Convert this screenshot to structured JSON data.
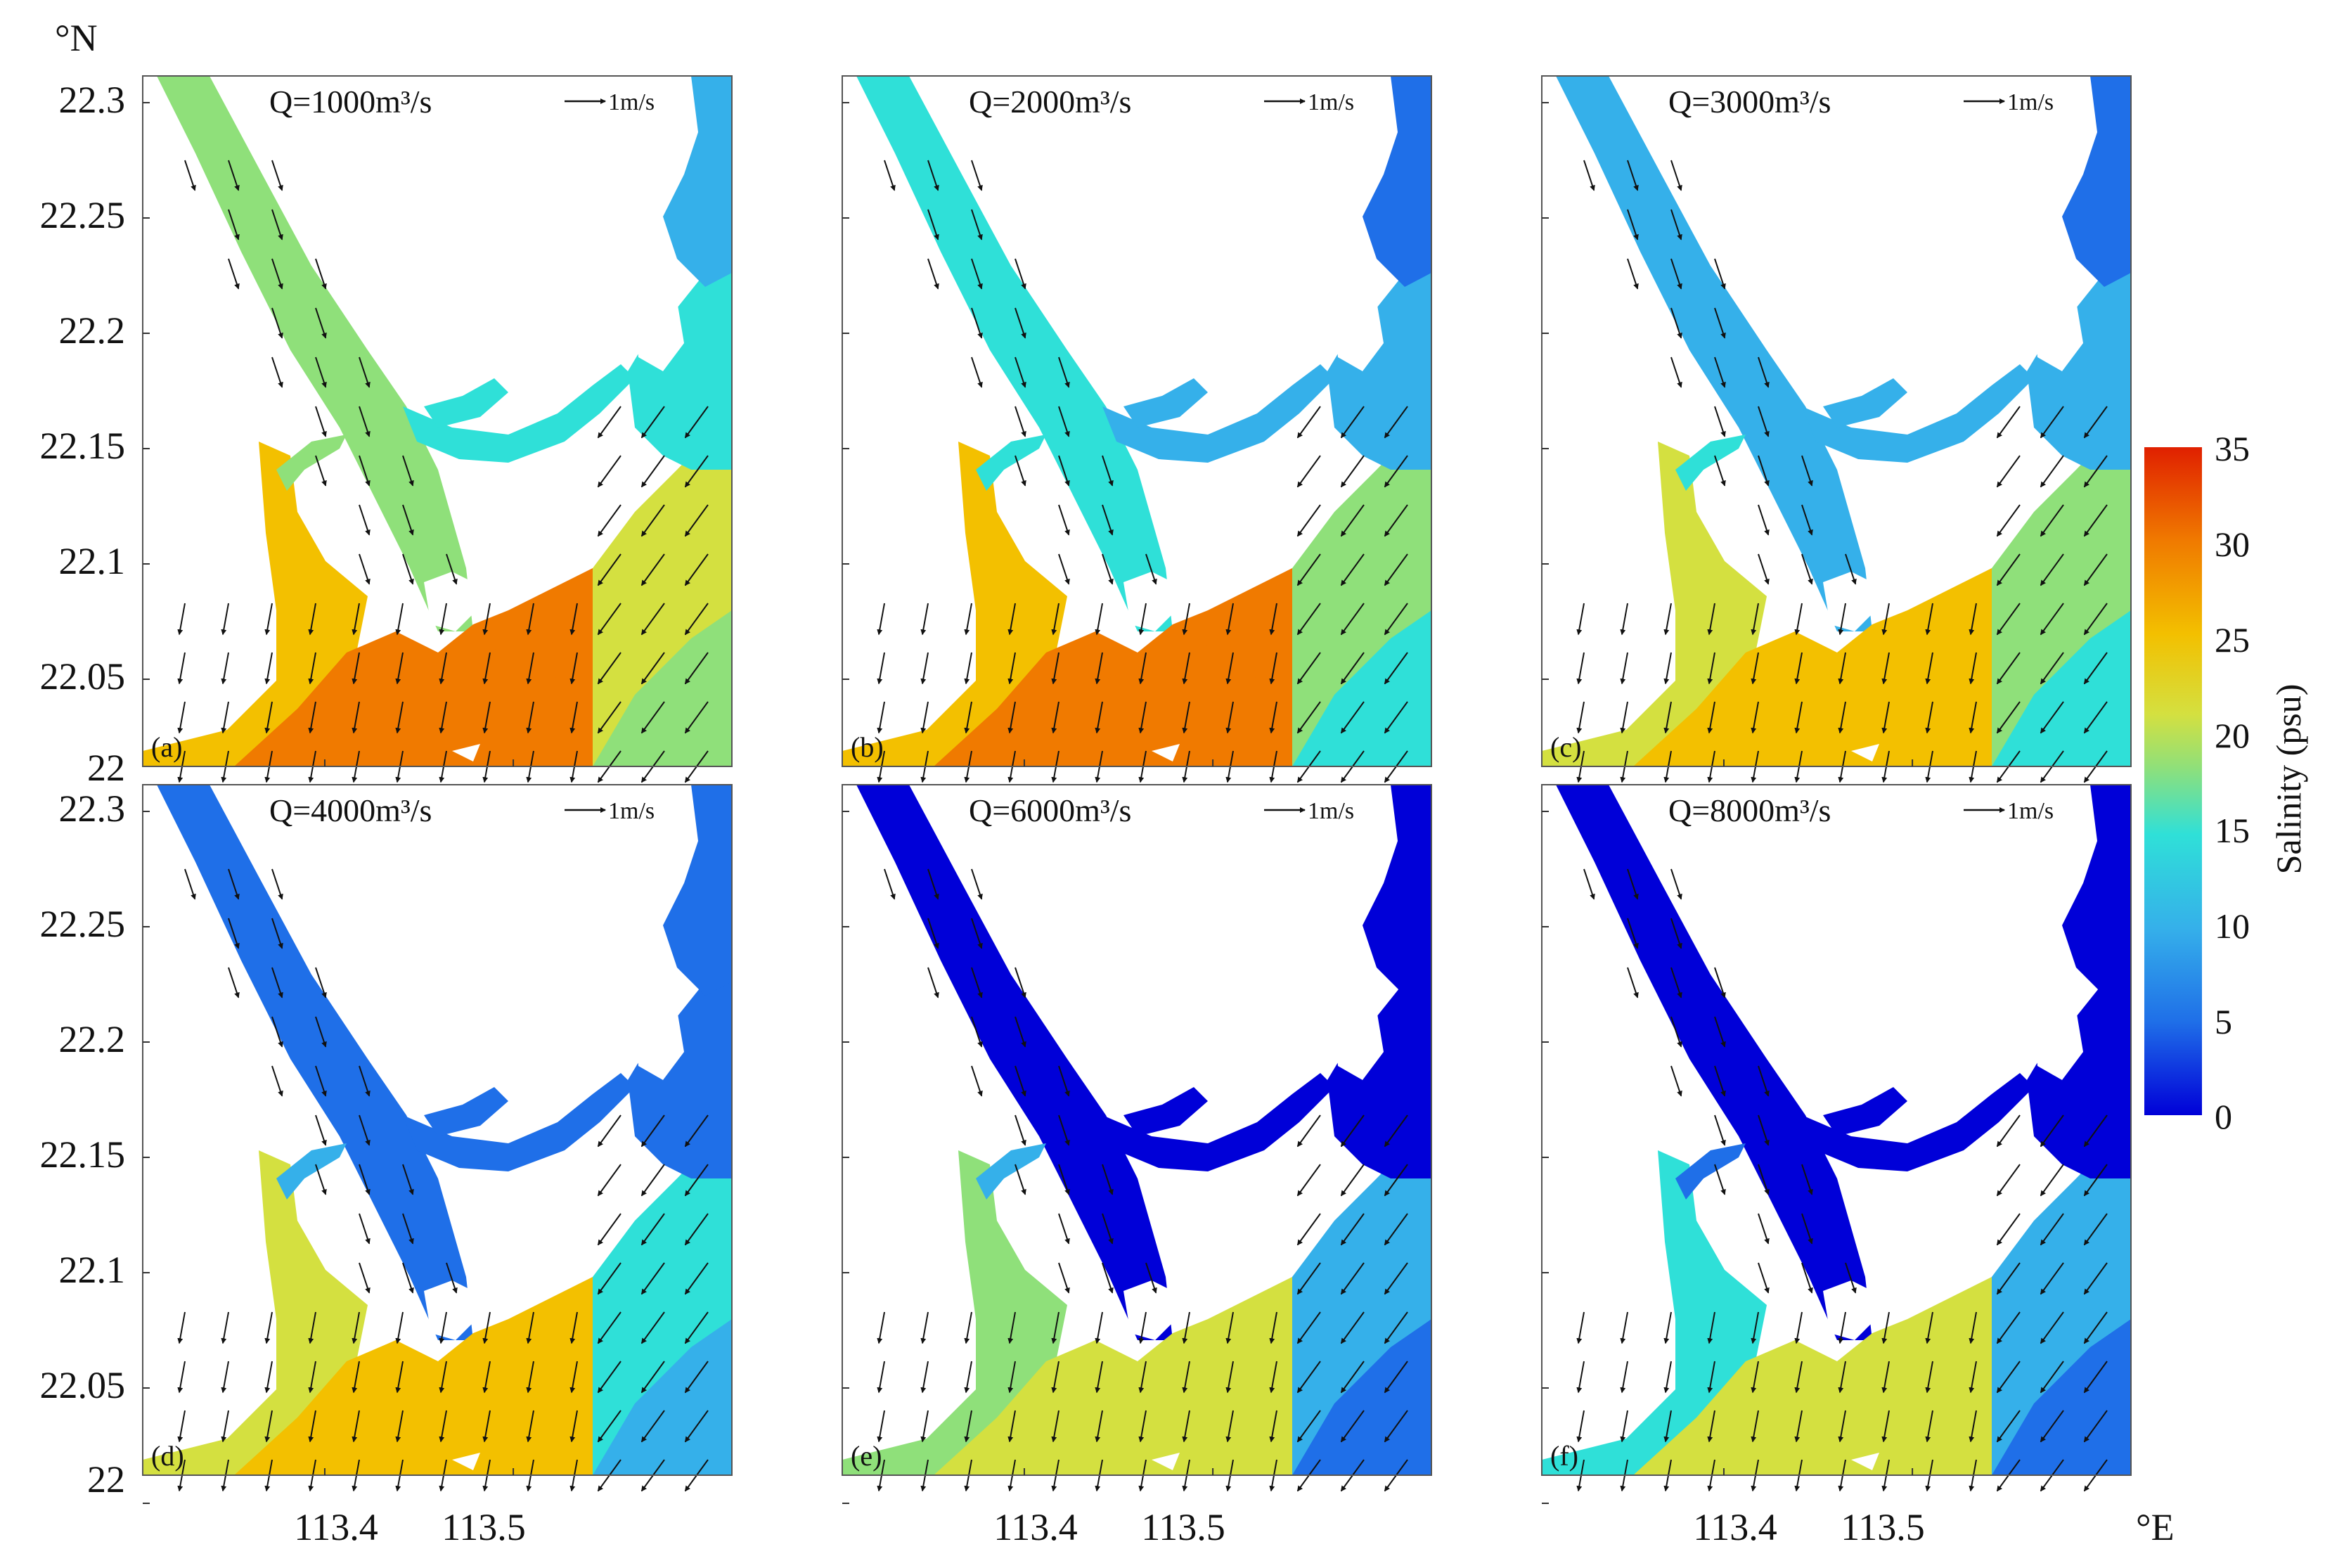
{
  "figure": {
    "y_axis_unit": "°N",
    "x_axis_unit": "°E",
    "y_ticks": [
      "22.3",
      "22.25",
      "22.2",
      "22.15",
      "22.1",
      "22.05",
      "22"
    ],
    "x_ticks": [
      "113.4",
      "113.5"
    ],
    "scale_arrow_label": "1m/s",
    "colorbar": {
      "label": "Salinity (psu)",
      "ticks": [
        "35",
        "30",
        "25",
        "20",
        "15",
        "10",
        "5",
        "0"
      ],
      "min": 0,
      "max": 35,
      "colors": [
        "#0000d8",
        "#1f6fe8",
        "#35b0ea",
        "#2fe0d8",
        "#8fe07a",
        "#d4e040",
        "#f3c000",
        "#f07a00",
        "#e02000"
      ]
    },
    "panels": [
      {
        "letter": "(a)",
        "q_label": "Q=1000m³/s",
        "discharge": 1000
      },
      {
        "letter": "(b)",
        "q_label": "Q=2000m³/s",
        "discharge": 2000
      },
      {
        "letter": "(c)",
        "q_label": "Q=3000m³/s",
        "discharge": 3000
      },
      {
        "letter": "(d)",
        "q_label": "Q=4000m³/s",
        "discharge": 4000
      },
      {
        "letter": "(e)",
        "q_label": "Q=6000m³/s",
        "discharge": 6000
      },
      {
        "letter": "(f)",
        "q_label": "Q=8000m³/s",
        "discharge": 8000
      }
    ]
  }
}
